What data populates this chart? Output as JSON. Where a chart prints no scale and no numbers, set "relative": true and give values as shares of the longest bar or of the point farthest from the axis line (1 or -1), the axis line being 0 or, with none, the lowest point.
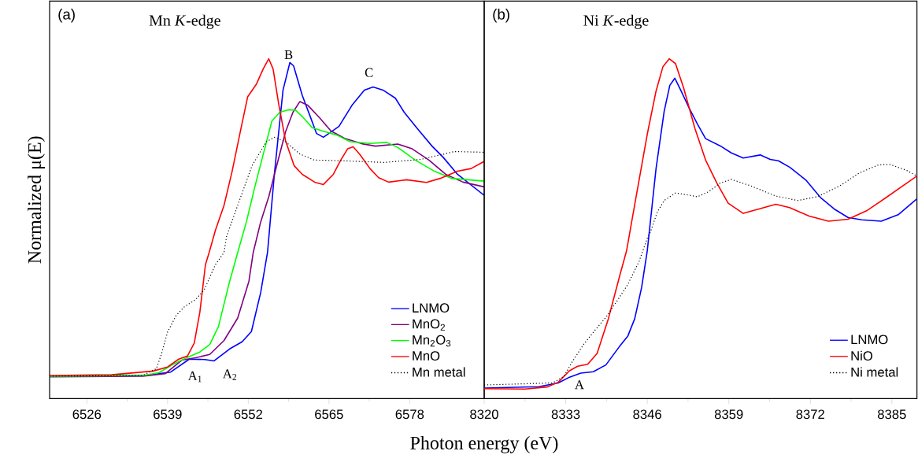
{
  "chart_data": [
    {
      "type": "line",
      "title": "Mn *K*-edge",
      "ylabel": "Normalized μ(E)",
      "xlabel": "Photon energy (eV)",
      "relative": true,
      "xlim": [
        6520,
        6590
      ],
      "xticks": [
        6526,
        6539,
        6552,
        6565,
        6578
      ],
      "tick_labels": "x",
      "legend": "bottom right",
      "marker": "none",
      "line_style": "solid",
      "annotations": [
        "(a)",
        "A$_{1}$",
        "A$_{2}$",
        "B",
        "C"
      ],
      "series": [
        {
          "name": "LNMO",
          "color": "#0000ff",
          "x": [
            6520,
            6536,
            6538,
            6539.5,
            6541,
            6542.5,
            6545,
            6546.5,
            6549,
            6551,
            6552.5,
            6554,
            6555.1,
            6556.2,
            6557.6,
            6558.7,
            6559.3,
            6560.7,
            6561.9,
            6563.0,
            6564.1,
            6566.6,
            6568.7,
            6570.7,
            6572.1,
            6573.7,
            6575.7,
            6577.1,
            6579.3,
            6581.6,
            6583.4,
            6585.7,
            6590
          ],
          "values": [
            0.065,
            0.069,
            0.074,
            0.078,
            0.097,
            0.116,
            0.115,
            0.111,
            0.146,
            0.167,
            0.197,
            0.312,
            0.43,
            0.66,
            0.908,
            0.989,
            0.979,
            0.892,
            0.834,
            0.78,
            0.769,
            0.801,
            0.863,
            0.908,
            0.917,
            0.908,
            0.884,
            0.843,
            0.793,
            0.743,
            0.71,
            0.66,
            0.598
          ]
        },
        {
          "name": "MnO$_{2}$",
          "color": "#800080",
          "x": [
            6520,
            6535,
            6538.6,
            6541.3,
            6543.5,
            6545.8,
            6548.1,
            6550.3,
            6552.1,
            6552.8,
            6554.0,
            6555.3,
            6556.7,
            6558.0,
            6559.2,
            6560.3,
            6561.6,
            6563.5,
            6565.3,
            6567.5,
            6570.3,
            6572.5,
            6576.1,
            6578.4,
            6581.1,
            6583.8,
            6586.6,
            6590
          ],
          "values": [
            0.064,
            0.066,
            0.073,
            0.113,
            0.12,
            0.13,
            0.171,
            0.237,
            0.345,
            0.43,
            0.52,
            0.594,
            0.694,
            0.785,
            0.843,
            0.874,
            0.863,
            0.826,
            0.788,
            0.766,
            0.75,
            0.743,
            0.749,
            0.735,
            0.702,
            0.66,
            0.637,
            0.623
          ]
        },
        {
          "name": "Mn$_{2}$O$_{3}$",
          "color": "#00ff00",
          "x": [
            6520,
            6535,
            6537.6,
            6539.9,
            6542.2,
            6544.2,
            6545.8,
            6547.2,
            6549.0,
            6550.3,
            6551.7,
            6553.0,
            6554.4,
            6555.8,
            6557.1,
            6558.5,
            6559.6,
            6560.7,
            6562.3,
            6563.9,
            6566.2,
            6568.4,
            6571.6,
            6574.3,
            6576.1,
            6578.9,
            6582.0,
            6584.8,
            6590
          ],
          "values": [
            0.066,
            0.068,
            0.076,
            0.101,
            0.121,
            0.137,
            0.159,
            0.212,
            0.345,
            0.43,
            0.52,
            0.619,
            0.718,
            0.817,
            0.843,
            0.85,
            0.849,
            0.83,
            0.797,
            0.788,
            0.776,
            0.756,
            0.751,
            0.754,
            0.739,
            0.702,
            0.669,
            0.648,
            0.64
          ]
        },
        {
          "name": "MnO",
          "color": "#ff0000",
          "x": [
            6520,
            6530,
            6536.7,
            6539.0,
            6540.8,
            6542.2,
            6543.3,
            6544.2,
            6545.1,
            6545.7,
            6546.7,
            6548.1,
            6549.4,
            6550.8,
            6551.9,
            6553.3,
            6554.4,
            6555.3,
            6556.0,
            6556.9,
            6558.0,
            6559.4,
            6560.7,
            6562.8,
            6564.1,
            6565.7,
            6566.9,
            6568.0,
            6568.9,
            6570.0,
            6571.6,
            6573.0,
            6574.6,
            6577.5,
            6580.7,
            6582.9,
            6585.7,
            6587.9,
            6590
          ],
          "values": [
            0.068,
            0.07,
            0.081,
            0.093,
            0.116,
            0.125,
            0.163,
            0.254,
            0.394,
            0.43,
            0.495,
            0.569,
            0.669,
            0.793,
            0.888,
            0.925,
            0.97,
            1.0,
            0.97,
            0.867,
            0.759,
            0.685,
            0.66,
            0.636,
            0.63,
            0.66,
            0.702,
            0.735,
            0.741,
            0.718,
            0.677,
            0.65,
            0.637,
            0.644,
            0.636,
            0.648,
            0.669,
            0.677,
            0.698
          ]
        },
        {
          "name": "Mn metal",
          "color": "#000000",
          "line_style": "dotted",
          "x": [
            6520,
            6535,
            6537.2,
            6538.0,
            6539.0,
            6540.4,
            6541.7,
            6543.5,
            6544.9,
            6546.7,
            6548.1,
            6548.5,
            6550.3,
            6552.6,
            6554.9,
            6556.2,
            6558.0,
            6560.3,
            6562.6,
            6567.1,
            6573.9,
            6579.8,
            6585.2,
            6590
          ],
          "values": [
            0.066,
            0.068,
            0.088,
            0.13,
            0.196,
            0.245,
            0.27,
            0.291,
            0.32,
            0.394,
            0.43,
            0.477,
            0.569,
            0.685,
            0.756,
            0.769,
            0.756,
            0.72,
            0.702,
            0.7,
            0.695,
            0.704,
            0.727,
            0.725
          ]
        }
      ]
    },
    {
      "type": "line",
      "title": "Ni *K*-edge",
      "relative": true,
      "xlim": [
        8320,
        8389
      ],
      "xticks": [
        8320,
        8333,
        8346,
        8359,
        8372,
        8385
      ],
      "tick_labels": "x",
      "legend": "bottom right",
      "marker": "none",
      "line_style": "solid",
      "annotations": [
        "(b)",
        "A"
      ],
      "series": [
        {
          "name": "LNMO",
          "color": "#0000ff",
          "x": [
            8320,
            8328.7,
            8331.8,
            8333.6,
            8335.4,
            8337.4,
            8339.4,
            8341.6,
            8342.9,
            8344.0,
            8345.1,
            8346.0,
            8347.4,
            8348.7,
            8349.6,
            8350.4,
            8351.4,
            8352.7,
            8354.0,
            8355.3,
            8357.6,
            8359.4,
            8361.3,
            8364.0,
            8365.6,
            8366.9,
            8368.7,
            8371.3,
            8373.6,
            8375.8,
            8378.0,
            8380.2,
            8383.3,
            8386.0,
            8389
          ],
          "values": [
            0.031,
            0.035,
            0.046,
            0.063,
            0.075,
            0.079,
            0.099,
            0.154,
            0.184,
            0.235,
            0.327,
            0.435,
            0.677,
            0.846,
            0.922,
            0.943,
            0.905,
            0.854,
            0.808,
            0.765,
            0.744,
            0.723,
            0.708,
            0.717,
            0.704,
            0.7,
            0.681,
            0.643,
            0.592,
            0.558,
            0.533,
            0.526,
            0.522,
            0.541,
            0.588
          ]
        },
        {
          "name": "NiO",
          "color": "#ff0000",
          "x": [
            8320,
            8326.5,
            8330.0,
            8331.8,
            8333.6,
            8334.9,
            8336.5,
            8338.0,
            8339.8,
            8341.6,
            8342.7,
            8344.2,
            8346.0,
            8347.4,
            8348.5,
            8349.5,
            8350.5,
            8351.8,
            8353.6,
            8355.3,
            8357.1,
            8358.9,
            8361.3,
            8363.8,
            8366.5,
            8368.7,
            8371.8,
            8374.9,
            8378.0,
            8381.1,
            8383.8,
            8389
          ],
          "values": [
            0.029,
            0.028,
            0.034,
            0.048,
            0.082,
            0.095,
            0.101,
            0.133,
            0.235,
            0.361,
            0.435,
            0.592,
            0.778,
            0.905,
            0.977,
            1.0,
            0.986,
            0.914,
            0.795,
            0.702,
            0.634,
            0.575,
            0.545,
            0.558,
            0.572,
            0.562,
            0.537,
            0.522,
            0.528,
            0.554,
            0.588,
            0.655
          ]
        },
        {
          "name": "Ni metal",
          "color": "#000000",
          "line_style": "dotted",
          "x": [
            8320,
            8330.9,
            8332.7,
            8334.0,
            8335.8,
            8337.6,
            8339.4,
            8341.1,
            8342.9,
            8344.7,
            8346.0,
            8346.5,
            8347.6,
            8348.7,
            8350.5,
            8352.2,
            8354.0,
            8355.8,
            8357.6,
            8359.4,
            8362.5,
            8366.5,
            8370.0,
            8373.1,
            8376.7,
            8379.8,
            8382.9,
            8384.7,
            8387.3,
            8389
          ],
          "values": [
            0.04,
            0.046,
            0.065,
            0.107,
            0.158,
            0.2,
            0.239,
            0.285,
            0.336,
            0.404,
            0.472,
            0.49,
            0.549,
            0.583,
            0.605,
            0.6,
            0.594,
            0.609,
            0.634,
            0.645,
            0.626,
            0.596,
            0.583,
            0.594,
            0.626,
            0.664,
            0.688,
            0.689,
            0.672,
            0.655
          ]
        }
      ]
    }
  ]
}
